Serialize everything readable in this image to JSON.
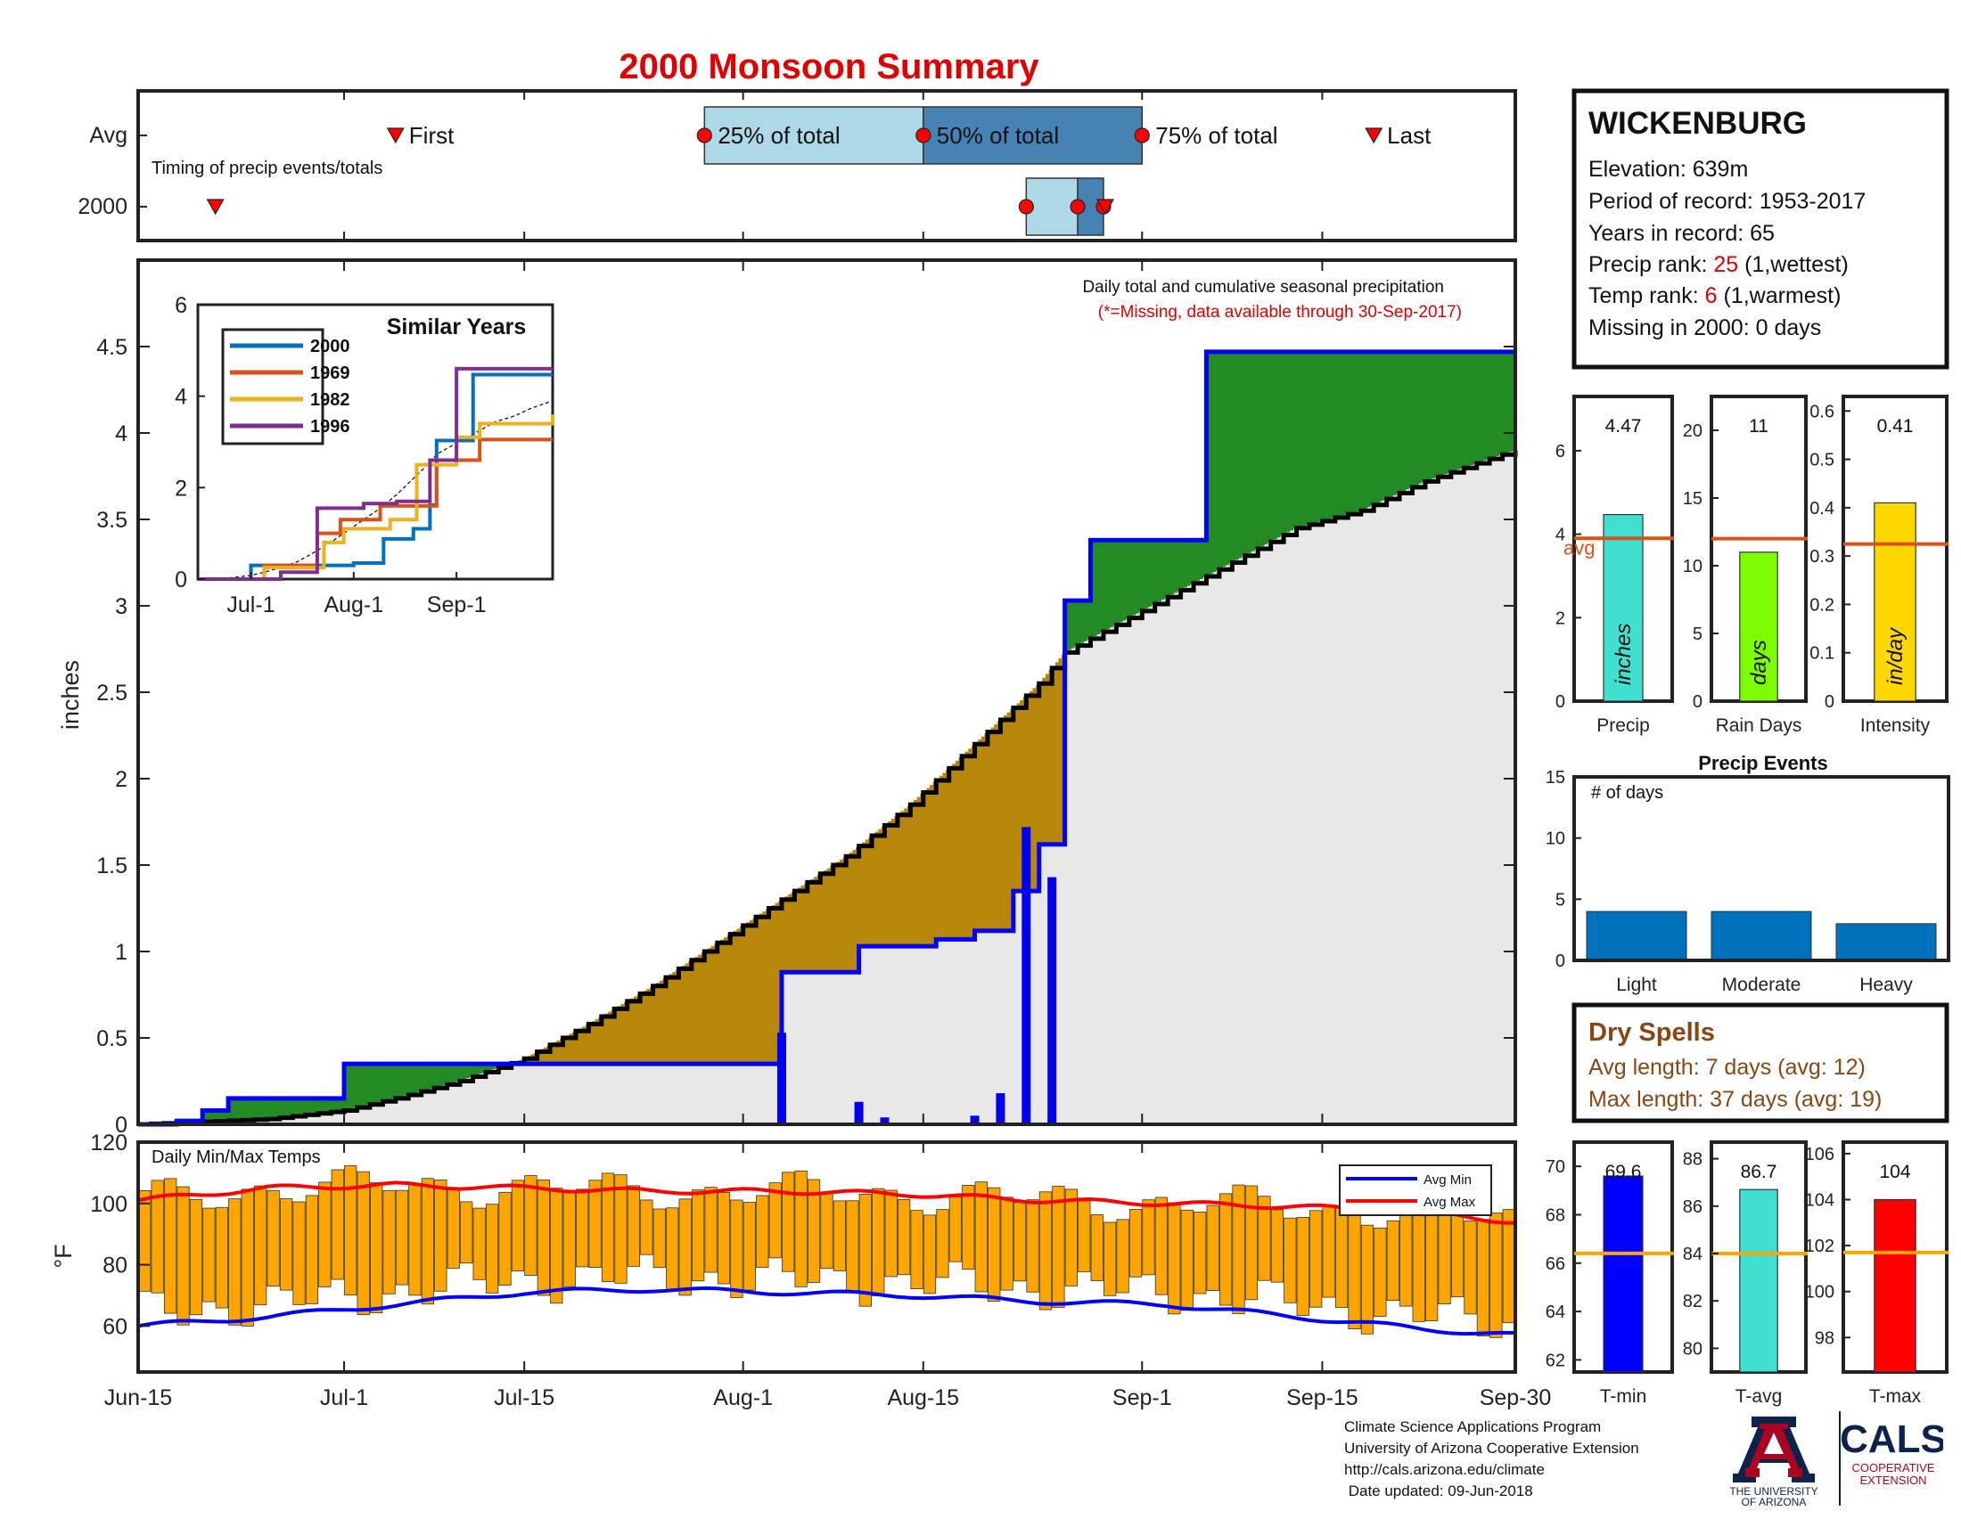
{
  "title": "2000 Monsoon Summary",
  "station": {
    "name": "WICKENBURG",
    "elevation_label": "Elevation: 639m",
    "period_label": "Period of record: 1953-2017",
    "years_label": "Years in record: 65",
    "precip_rank_prefix": "Precip rank: ",
    "precip_rank_value": "25",
    "precip_rank_suffix": " (1,wettest)",
    "temp_rank_prefix": "Temp rank: ",
    "temp_rank_value": "6",
    "temp_rank_suffix": " (1,warmest)",
    "missing_label": "Missing in 2000: 0 days"
  },
  "timing": {
    "row_labels": [
      "Avg",
      "2000"
    ],
    "caption": "Timing of precip events/totals",
    "first_label": "First",
    "last_label": "Last",
    "p25_label": "25% of total",
    "p50_label": "50% of total",
    "p75_label": "75% of total",
    "avg_first_day": 20,
    "avg_p25_day": 44,
    "avg_p50_day": 61,
    "avg_p75_day": 78,
    "avg_last_day": 96,
    "yr_first_day": 6,
    "yr_p25_day": 69,
    "yr_p50_day": 73,
    "yr_p75_day": 75,
    "colors": {
      "q1": "#add8e6",
      "q2": "#4682b4",
      "marker": "#ff0000"
    }
  },
  "main": {
    "ylabel": "inches",
    "note1": "Daily total and cumulative seasonal precipitation",
    "note2": "(*=Missing, data available through 30-Sep-2017)",
    "colors": {
      "above": "#228b22",
      "below": "#b8860b",
      "fill": "#e8e8e8",
      "year_line": "#0000ff",
      "avg_line": "#000000"
    }
  },
  "dates": {
    "ticks": [
      {
        "label": "Jun-15",
        "day": 0
      },
      {
        "label": "Jul-1",
        "day": 16
      },
      {
        "label": "Jul-15",
        "day": 30
      },
      {
        "label": "Aug-1",
        "day": 47
      },
      {
        "label": "Aug-15",
        "day": 61
      },
      {
        "label": "Sep-1",
        "day": 78
      },
      {
        "label": "Sep-15",
        "day": 92
      },
      {
        "label": "Sep-30",
        "day": 107
      }
    ]
  },
  "inset": {
    "title": "Similar Years",
    "xticks": [
      "Jul-1",
      "Aug-1",
      "Sep-1"
    ],
    "legend": [
      {
        "name": "2000",
        "color": "#0072bd"
      },
      {
        "name": "1969",
        "color": "#d95319"
      },
      {
        "name": "1982",
        "color": "#edb120"
      },
      {
        "name": "1996",
        "color": "#7e2f8e"
      }
    ]
  },
  "stats": {
    "precip": {
      "value_label": "4.47",
      "value": 4.47,
      "avg": 3.9,
      "unit": "inches",
      "xlabel": "Precip",
      "avg_label": "avg",
      "color": "#40e0d0",
      "ticks": [
        "0",
        "2",
        "4",
        "6"
      ]
    },
    "raindays": {
      "value_label": "11",
      "value": 11,
      "avg": 12,
      "unit": "days",
      "xlabel": "Rain Days",
      "color": "#7cfc00",
      "ticks": [
        "0",
        "5",
        "10",
        "15",
        "20"
      ]
    },
    "intensity": {
      "value_label": "0.41",
      "value": 0.41,
      "avg": 0.325,
      "unit": "in/day",
      "xlabel": "Intensity",
      "color": "#ffd700",
      "ticks": [
        "0",
        "0.1",
        "0.2",
        "0.3",
        "0.4",
        "0.5",
        "0.6"
      ]
    },
    "avg_line_color": "#d95319"
  },
  "events": {
    "title": "Precip Events",
    "ylabel_note": "# of days",
    "categories": [
      "Light",
      "Moderate",
      "Heavy"
    ],
    "values": [
      4,
      4,
      3
    ],
    "ticks": [
      "0",
      "5",
      "10",
      "15"
    ],
    "color": "#0072bd"
  },
  "dry_spells": {
    "title": "Dry Spells",
    "avg_length": "Avg length: 7 days (avg: 12)",
    "max_length": "Max length: 37 days (avg: 19)",
    "color": "#8b4513"
  },
  "temps": {
    "caption": "Daily Min/Max Temps",
    "ylabel": "°F",
    "yticks": [
      "60",
      "80",
      "100",
      "120"
    ],
    "legend_min": "Avg Min",
    "legend_max": "Avg Max",
    "bar_color": "#ffa500",
    "min_color": "#0000ff",
    "max_color": "#ff0000"
  },
  "temp_stats": {
    "tmin": {
      "value_label": "69.6",
      "value": 69.6,
      "avg": 66.4,
      "xlabel": "T-min",
      "color": "#0000ff",
      "ticks": [
        "62",
        "64",
        "66",
        "68",
        "70"
      ],
      "range": [
        61.5,
        71
      ]
    },
    "tavg": {
      "value_label": "86.7",
      "value": 86.7,
      "avg": 84.0,
      "xlabel": "T-avg",
      "color": "#40e0d0",
      "ticks": [
        "80",
        "82",
        "84",
        "86",
        "88"
      ],
      "range": [
        79,
        88.7
      ]
    },
    "tmax": {
      "value_label": "104",
      "value": 104,
      "avg": 101.7,
      "xlabel": "T-max",
      "color": "#ff0000",
      "ticks": [
        "98",
        "100",
        "102",
        "104",
        "106"
      ],
      "range": [
        96.5,
        106.5
      ]
    },
    "avg_line_color": "#ffa500"
  },
  "footer": {
    "line1": "Climate Science Applications Program",
    "line2": "University of Arizona Cooperative Extension",
    "line3": "http://cals.arizona.edu/climate",
    "line4": " Date updated: 09-Jun-2018"
  },
  "logos": {
    "ua_line1": "THE UNIVERSITY",
    "ua_line2": "OF ARIZONA",
    "cals": "CALS",
    "cals_sub1": "COOPERATIVE",
    "cals_sub2": "EXTENSION"
  },
  "chart_data": [
    {
      "type": "area",
      "title": "Daily total and cumulative seasonal precipitation",
      "xlabel": "",
      "ylabel": "inches",
      "ylim": [
        0,
        5
      ],
      "x_unit": "days since Jun-15",
      "series": [
        {
          "name": "2000",
          "x": [
            0,
            3,
            5,
            7,
            10,
            16,
            30,
            38,
            44,
            46,
            47,
            50,
            56,
            60,
            62,
            65,
            68,
            70,
            72,
            73,
            74,
            75,
            83,
            107
          ],
          "y": [
            0,
            0.02,
            0.08,
            0.15,
            0.15,
            0.35,
            0.35,
            0.35,
            0.35,
            0.35,
            0.35,
            0.88,
            1.03,
            1.03,
            1.07,
            1.12,
            1.35,
            1.62,
            3.03,
            3.03,
            3.38,
            3.38,
            4.47,
            4.47
          ]
        },
        {
          "x": [
            0,
            10,
            16,
            20,
            25,
            30,
            35,
            40,
            45,
            50,
            55,
            60,
            65,
            70,
            72,
            75,
            80,
            85,
            90,
            95,
            100,
            105,
            107
          ],
          "y": [
            0,
            0.03,
            0.08,
            0.15,
            0.25,
            0.38,
            0.58,
            0.8,
            1.05,
            1.3,
            1.55,
            1.85,
            2.2,
            2.55,
            2.73,
            2.85,
            3.05,
            3.25,
            3.45,
            3.55,
            3.72,
            3.85,
            3.9
          ]
        }
      ],
      "daily_precip_bars": [
        {
          "x": 50,
          "y": 0.53
        },
        {
          "x": 56,
          "y": 0.13
        },
        {
          "x": 58,
          "y": 0.04
        },
        {
          "x": 65,
          "y": 0.05
        },
        {
          "x": 67,
          "y": 0.18
        },
        {
          "x": 69,
          "y": 1.72
        },
        {
          "x": 71,
          "y": 1.43
        }
      ]
    },
    {
      "type": "line",
      "title": "Similar Years",
      "ylim": [
        0,
        6
      ],
      "x_unit": "days since Jun-15",
      "series": [
        {
          "name": "2000",
          "x": [
            0,
            16,
            30,
            47,
            56,
            65,
            70,
            72,
            83,
            107
          ],
          "y": [
            0,
            0.3,
            0.3,
            0.35,
            0.88,
            1.1,
            1.62,
            3.03,
            4.47,
            4.47
          ]
        },
        {
          "name": "1969",
          "x": [
            0,
            20,
            36,
            43,
            55,
            72,
            78,
            85,
            107
          ],
          "y": [
            0,
            0.3,
            1.0,
            1.3,
            1.6,
            2.6,
            2.6,
            3.05,
            3.05
          ]
        },
        {
          "name": "1982",
          "x": [
            0,
            20,
            38,
            44,
            58,
            66,
            78,
            85,
            107
          ],
          "y": [
            0,
            0.25,
            0.8,
            1.1,
            1.3,
            2.5,
            3.1,
            3.4,
            3.6
          ]
        },
        {
          "name": "1996",
          "x": [
            0,
            25,
            36,
            50,
            60,
            70,
            75,
            78,
            107
          ],
          "y": [
            0,
            0.15,
            1.55,
            1.65,
            1.7,
            2.6,
            2.6,
            4.6,
            4.6
          ]
        }
      ]
    },
    {
      "type": "bar",
      "title": "Precip Events",
      "categories": [
        "Light",
        "Moderate",
        "Heavy"
      ],
      "values": [
        4,
        4,
        3
      ],
      "ylim": [
        0,
        15
      ]
    },
    {
      "type": "bar",
      "title": "Daily Min/Max Temps",
      "ylabel": "°F",
      "ylim": [
        45,
        120
      ],
      "x_unit": "days since Jun-15",
      "series": [
        {
          "name": "Avg Min",
          "x": [
            0,
            10,
            20,
            30,
            40,
            50,
            60,
            70,
            80,
            90,
            100,
            107
          ],
          "y": [
            60,
            63,
            67,
            71,
            72,
            71,
            70,
            68,
            67,
            63,
            59,
            57
          ]
        },
        {
          "name": "Avg Max",
          "x": [
            0,
            10,
            20,
            30,
            40,
            50,
            60,
            70,
            80,
            90,
            100,
            107
          ],
          "y": [
            101,
            105,
            106,
            105,
            104,
            104,
            103,
            101,
            100,
            99,
            97,
            94
          ]
        }
      ]
    }
  ]
}
